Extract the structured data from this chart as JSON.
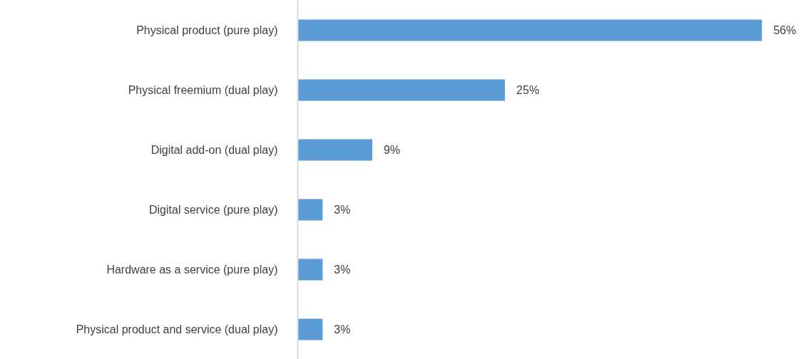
{
  "chart_data": {
    "type": "bar",
    "orientation": "horizontal",
    "categories": [
      "Physical product (pure play)",
      "Physical freemium (dual play)",
      "Digital add-on (dual play)",
      "Digital service (pure play)",
      "Hardware as a service (pure play)",
      "Physical product and service (dual play)"
    ],
    "values": [
      56,
      25,
      9,
      3,
      3,
      3
    ],
    "value_labels": [
      "56%",
      "25%",
      "9%",
      "3%",
      "3%",
      "3%"
    ],
    "color": "#5b9bd5",
    "grid": false,
    "tick_labels": "y"
  }
}
